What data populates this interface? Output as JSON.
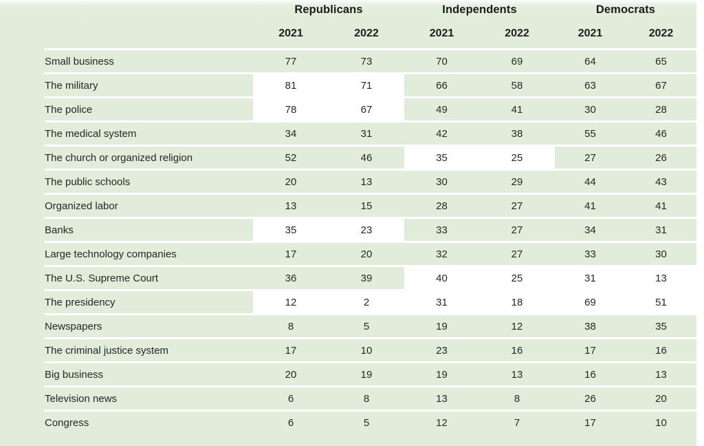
{
  "chart_data": {
    "type": "table",
    "groups": [
      "Republicans",
      "Independents",
      "Democrats"
    ],
    "years": [
      "2021",
      "2022"
    ],
    "column_headers": [
      "2021",
      "2022",
      "2021",
      "2022",
      "2021",
      "2022"
    ],
    "rows": [
      {
        "label": "Small business",
        "values": [
          77,
          73,
          70,
          69,
          64,
          65
        ],
        "highlight_groups": []
      },
      {
        "label": "The military",
        "values": [
          81,
          71,
          66,
          58,
          63,
          67
        ],
        "highlight_groups": [
          "rep"
        ]
      },
      {
        "label": "The police",
        "values": [
          78,
          67,
          49,
          41,
          30,
          28
        ],
        "highlight_groups": [
          "rep"
        ]
      },
      {
        "label": "The medical system",
        "values": [
          34,
          31,
          42,
          38,
          55,
          46
        ],
        "highlight_groups": []
      },
      {
        "label": "The church or organized religion",
        "values": [
          52,
          46,
          35,
          25,
          27,
          26
        ],
        "highlight_groups": [
          "ind"
        ]
      },
      {
        "label": "The public schools",
        "values": [
          20,
          13,
          30,
          29,
          44,
          43
        ],
        "highlight_groups": []
      },
      {
        "label": "Organized labor",
        "values": [
          13,
          15,
          28,
          27,
          41,
          41
        ],
        "highlight_groups": []
      },
      {
        "label": "Banks",
        "values": [
          35,
          23,
          33,
          27,
          34,
          31
        ],
        "highlight_groups": [
          "rep"
        ]
      },
      {
        "label": "Large technology companies",
        "values": [
          17,
          20,
          32,
          27,
          33,
          30
        ],
        "highlight_groups": []
      },
      {
        "label": "The U.S. Supreme Court",
        "values": [
          36,
          39,
          40,
          25,
          31,
          13
        ],
        "highlight_groups": [
          "ind",
          "dem"
        ]
      },
      {
        "label": "The presidency",
        "values": [
          12,
          2,
          31,
          18,
          69,
          51
        ],
        "highlight_groups": [
          "rep",
          "ind",
          "dem"
        ]
      },
      {
        "label": "Newspapers",
        "values": [
          8,
          5,
          19,
          12,
          38,
          35
        ],
        "highlight_groups": []
      },
      {
        "label": "The criminal justice system",
        "values": [
          17,
          10,
          23,
          16,
          17,
          16
        ],
        "highlight_groups": []
      },
      {
        "label": "Big business",
        "values": [
          20,
          19,
          19,
          13,
          16,
          13
        ],
        "highlight_groups": []
      },
      {
        "label": "Television news",
        "values": [
          6,
          8,
          13,
          8,
          26,
          20
        ],
        "highlight_groups": []
      },
      {
        "label": "Congress",
        "values": [
          6,
          5,
          12,
          7,
          17,
          10
        ],
        "highlight_groups": []
      }
    ],
    "layout_hints": {
      "highlight_meaning": "white cell-group background marks highlighted cells; all other cells sit on green rows"
    },
    "colors": {
      "row_green": "#e1edda",
      "highlight_white": "#ffffff",
      "separator_white": "#ffffff",
      "text_dark": "#262626",
      "header_text": "#1c1c1c",
      "page_background": "#ffffff"
    }
  }
}
